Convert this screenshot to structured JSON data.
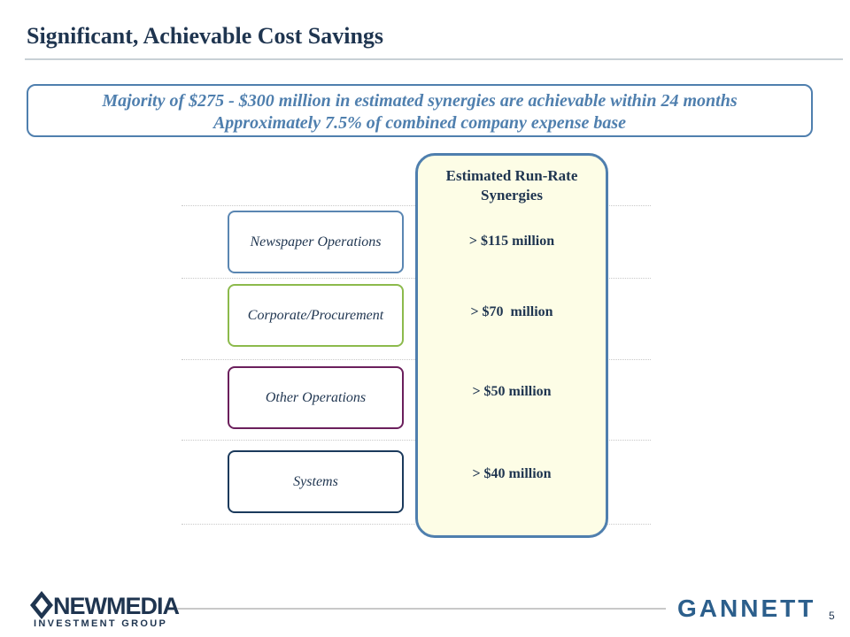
{
  "header": {
    "title": "Significant, Achievable Cost Savings"
  },
  "callout": {
    "lines": [
      "Majority of $275 - $300 million in estimated synergies are achievable within 24 months",
      "Approximately 7.5% of combined company expense base"
    ]
  },
  "table": {
    "column_header": "Estimated Run-Rate Synergies",
    "rows": [
      [
        "Newspaper Operations",
        "> $115 million"
      ],
      [
        "Corporate/Procurement",
        "> $70  million"
      ],
      [
        "Other Operations",
        "> $50 million"
      ],
      [
        "Systems",
        "> $40 million"
      ]
    ]
  },
  "footer": {
    "left_logo": [
      "NEWMEDIA",
      "INVESTMENT GROUP"
    ],
    "right_logo": "GANNETT",
    "page_number": "5"
  }
}
